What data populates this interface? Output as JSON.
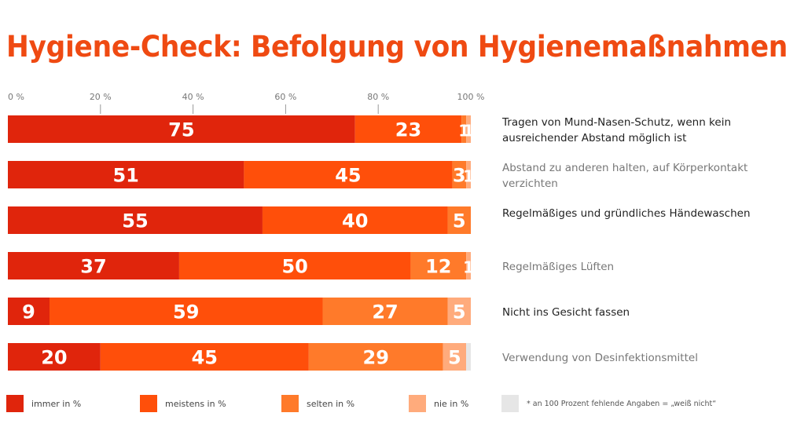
{
  "chart_data": {
    "type": "bar",
    "orientation": "horizontal",
    "stacked": true,
    "title": "Hygiene-Check: Befolgung von Hygienemaßnahmen",
    "xlabel": "",
    "ylabel": "",
    "xlim": [
      0,
      100
    ],
    "x_ticks": [
      "0 %",
      "20 %",
      "40 %",
      "60 %",
      "80 %",
      "100 %"
    ],
    "x_tick_values": [
      0,
      20,
      40,
      60,
      80,
      100
    ],
    "grid": false,
    "legend_position": "bottom",
    "categories": [
      "Tragen von Mund-Nasen-Schutz, wenn kein ausreichender Abstand möglich ist",
      "Abstand zu anderen halten, auf Körperkontakt verzichten",
      "Regelmäßiges und gründliches Händewaschen",
      "Regelmäßiges Lüften",
      "Nicht ins Gesicht fassen",
      "Verwendung von Desinfektionsmittel"
    ],
    "category_label_dark": [
      true,
      false,
      true,
      false,
      true,
      false
    ],
    "series": [
      {
        "name": "immer in %",
        "color": "#e0250c",
        "values": [
          75,
          51,
          55,
          37,
          9,
          20
        ]
      },
      {
        "name": "meistens in %",
        "color": "#ff4f0a",
        "values": [
          23,
          45,
          40,
          50,
          59,
          45
        ]
      },
      {
        "name": "selten in %",
        "color": "#ff7a2a",
        "values": [
          1,
          3,
          5,
          12,
          27,
          29
        ]
      },
      {
        "name": "nie in %",
        "color": "#ffab7c",
        "values": [
          1,
          1,
          0,
          1,
          5,
          5
        ]
      }
    ],
    "footnote_swatch_color": "#e6e6e6",
    "footnote": "* an 100 Prozent fehlende Angaben = „weiß nicht“"
  }
}
